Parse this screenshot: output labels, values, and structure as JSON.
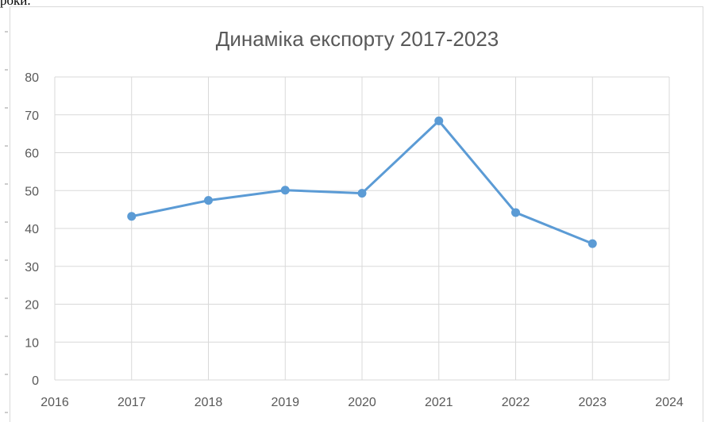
{
  "document": {
    "top_text": "роки."
  },
  "chart_data": {
    "type": "scatter",
    "title": "Динаміка експорту 2017-2023",
    "xlabel": "",
    "ylabel": "",
    "x": [
      2017,
      2018,
      2019,
      2020,
      2021,
      2022,
      2023
    ],
    "y": [
      43.2,
      47.4,
      50.1,
      49.3,
      68.4,
      44.2,
      36.0
    ],
    "xlim": [
      2016,
      2024
    ],
    "ylim": [
      0,
      80
    ],
    "xticks": [
      2016,
      2017,
      2018,
      2019,
      2020,
      2021,
      2022,
      2023,
      2024
    ],
    "yticks": [
      0,
      10,
      20,
      30,
      40,
      50,
      60,
      70,
      80
    ],
    "lines": true,
    "markers": true,
    "grid": true,
    "legend": "none",
    "color": "#5b9bd5",
    "grid_color": "#d9d9d9"
  }
}
